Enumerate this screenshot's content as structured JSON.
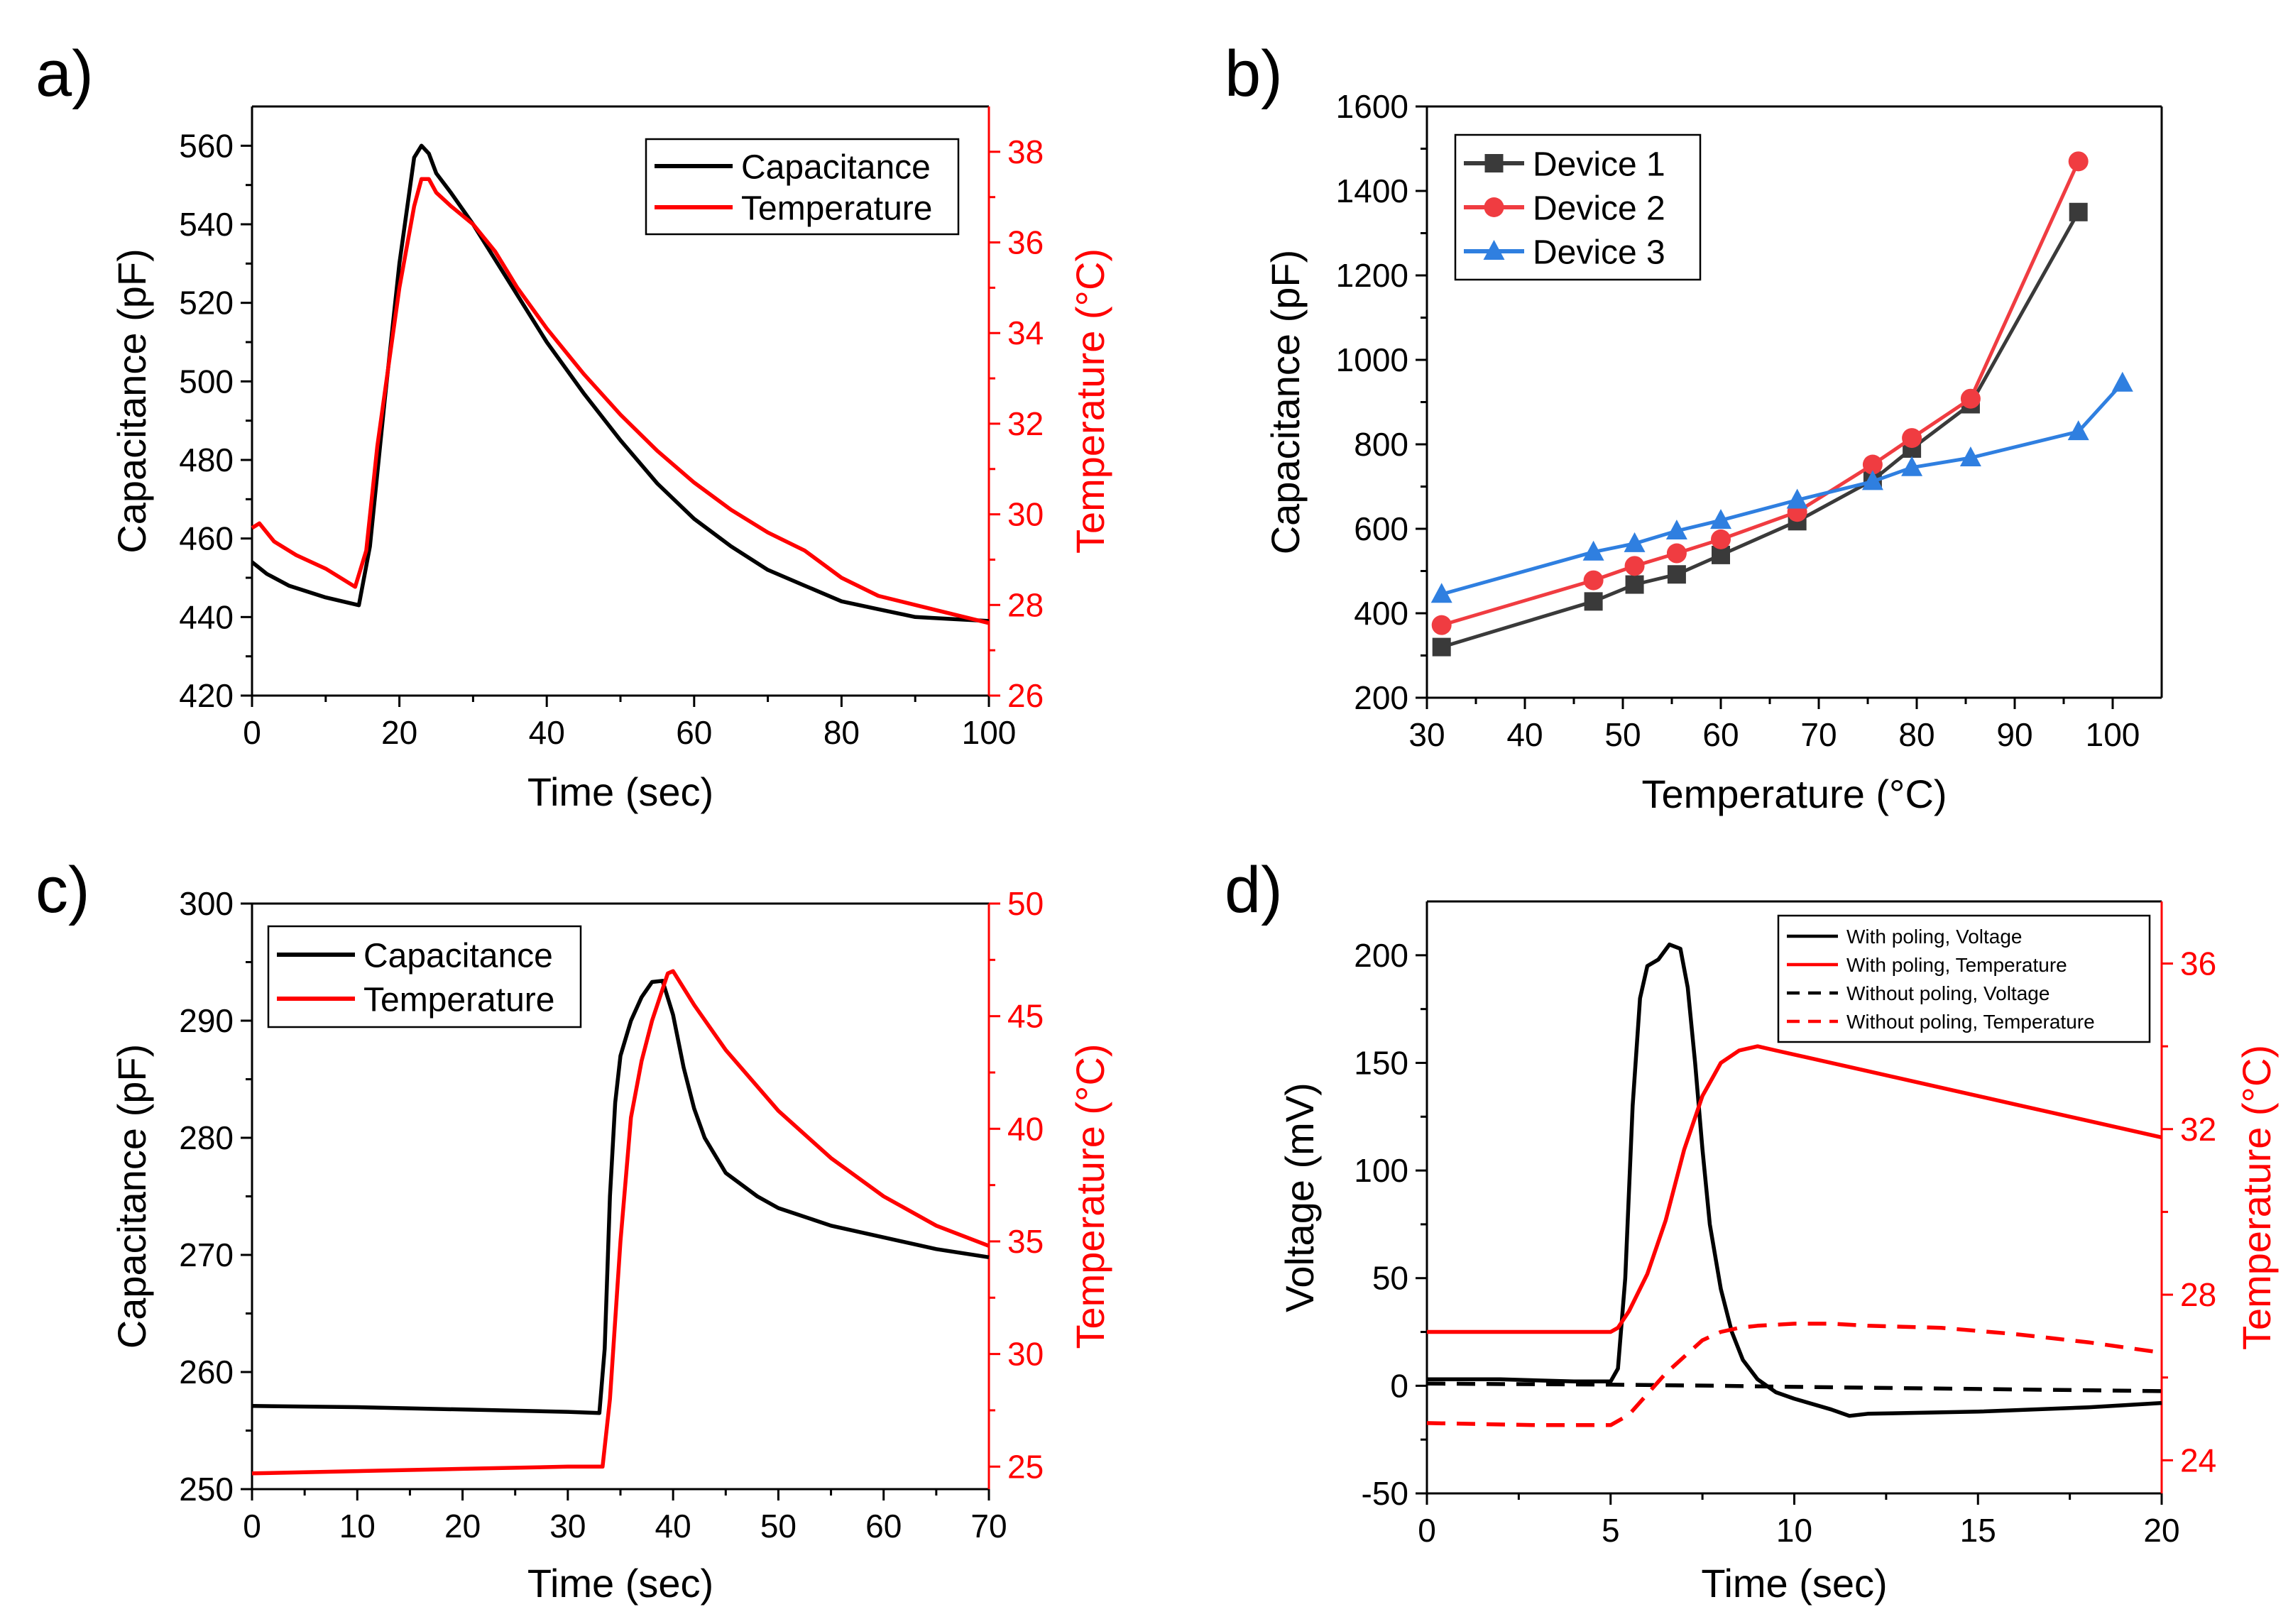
{
  "colors": {
    "black": "#000000",
    "red": "#ff0000",
    "gray": "#3a3a3a",
    "pink_red": "#f03c41",
    "blue": "#2f7fe0"
  },
  "chart_data": [
    {
      "panel": "a)",
      "type": "line",
      "xlabel": "Time (sec)",
      "ylabel": "Capacitance (pF)",
      "y2label": "Temperature (°C)",
      "xlim": [
        0,
        100
      ],
      "ylim": [
        420,
        570
      ],
      "y2lim": [
        26,
        39
      ],
      "xticks": [
        "0",
        "20",
        "40",
        "60",
        "80",
        "100"
      ],
      "yticks": [
        "420",
        "440",
        "460",
        "480",
        "500",
        "520",
        "540",
        "560"
      ],
      "y2ticks": [
        "26",
        "28",
        "30",
        "32",
        "34",
        "36",
        "38"
      ],
      "legend_position": "top-right",
      "series": [
        {
          "name": "Capacitance",
          "axis": "left",
          "color": "#000000",
          "dash": "solid",
          "x": [
            0,
            2,
            5,
            10,
            14.5,
            16,
            18,
            20,
            22,
            23,
            24,
            25,
            27,
            30,
            35,
            40,
            45,
            50,
            55,
            60,
            65,
            70,
            75,
            80,
            85,
            90,
            95,
            100
          ],
          "y": [
            454,
            451,
            448,
            445,
            443,
            458,
            495,
            530,
            557,
            560,
            558,
            553,
            548,
            540,
            525,
            510,
            497,
            485,
            474,
            465,
            458,
            452,
            448,
            444,
            442,
            440,
            439.5,
            439
          ]
        },
        {
          "name": "Temperature",
          "axis": "right",
          "color": "#ff0000",
          "dash": "solid",
          "x": [
            0,
            1,
            3,
            6,
            10,
            14,
            15.5,
            17,
            20,
            22,
            23,
            24,
            25,
            27,
            30,
            33,
            36,
            40,
            45,
            50,
            55,
            60,
            65,
            70,
            75,
            80,
            85,
            90,
            95,
            100
          ],
          "y": [
            29.7,
            29.8,
            29.4,
            29.1,
            28.8,
            28.4,
            29.2,
            31.5,
            35,
            36.8,
            37.4,
            37.4,
            37.1,
            36.8,
            36.4,
            35.8,
            35,
            34.1,
            33.1,
            32.2,
            31.4,
            30.7,
            30.1,
            29.6,
            29.2,
            28.6,
            28.2,
            28,
            27.8,
            27.6
          ]
        }
      ]
    },
    {
      "panel": "b)",
      "type": "line",
      "xlabel": "Temperature (°C)",
      "ylabel": "Capacitance (pF)",
      "xlim": [
        30,
        105
      ],
      "ylim": [
        200,
        1600
      ],
      "xticks": [
        "30",
        "40",
        "50",
        "60",
        "70",
        "80",
        "90",
        "100"
      ],
      "yticks": [
        "200",
        "400",
        "600",
        "800",
        "1000",
        "1200",
        "1400",
        "1600"
      ],
      "legend_position": "top-left",
      "series": [
        {
          "name": "Device 1",
          "color": "#3a3a3a",
          "marker": "square",
          "x": [
            31.5,
            47,
            51.2,
            55.5,
            60,
            67.8,
            75.5,
            79.5,
            85.5,
            96.5
          ],
          "y": [
            320,
            428,
            468,
            492,
            538,
            618,
            715,
            790,
            895,
            1350
          ]
        },
        {
          "name": "Device 2",
          "color": "#f03c41",
          "marker": "circle",
          "x": [
            31.5,
            47,
            51.2,
            55.5,
            60,
            67.8,
            75.5,
            79.5,
            85.5,
            96.5
          ],
          "y": [
            372,
            478,
            512,
            542,
            575,
            640,
            752,
            815,
            908,
            1470
          ]
        },
        {
          "name": "Device 3",
          "color": "#2f7fe0",
          "marker": "triangle",
          "x": [
            31.5,
            47,
            51.2,
            55.5,
            60,
            67.8,
            75.5,
            79.5,
            85.5,
            96.5,
            101
          ],
          "y": [
            445,
            545,
            565,
            595,
            620,
            668,
            712,
            745,
            768,
            830,
            945
          ]
        }
      ]
    },
    {
      "panel": "c)",
      "type": "line",
      "xlabel": "Time (sec)",
      "ylabel": "Capacitance (pF)",
      "y2label": "Temperature (°C)",
      "xlim": [
        0,
        70
      ],
      "ylim": [
        250,
        300
      ],
      "y2lim": [
        24,
        50
      ],
      "xticks": [
        "0",
        "10",
        "20",
        "30",
        "40",
        "50",
        "60",
        "70"
      ],
      "yticks": [
        "250",
        "260",
        "270",
        "280",
        "290",
        "300"
      ],
      "y2ticks": [
        "25",
        "30",
        "35",
        "40",
        "45",
        "50"
      ],
      "legend_position": "top-left",
      "series": [
        {
          "name": "Capacitance",
          "axis": "left",
          "color": "#000000",
          "dash": "solid",
          "x": [
            0,
            10,
            20,
            30,
            33,
            33.5,
            34,
            34.5,
            35,
            36,
            37,
            38,
            39,
            40,
            41,
            42,
            43,
            45,
            48,
            50,
            55,
            60,
            65,
            70
          ],
          "y": [
            257.1,
            257,
            256.8,
            256.6,
            256.5,
            262,
            275,
            283,
            287,
            290,
            292,
            293.3,
            293.4,
            290.5,
            286,
            282.5,
            280,
            277,
            275,
            274,
            272.5,
            271.5,
            270.5,
            269.8
          ]
        },
        {
          "name": "Temperature",
          "axis": "right",
          "color": "#ff0000",
          "dash": "solid",
          "x": [
            0,
            10,
            20,
            30,
            33.3,
            34,
            35,
            36,
            37,
            38,
            39,
            39.5,
            40,
            42,
            45,
            50,
            55,
            60,
            65,
            70
          ],
          "y": [
            24.7,
            24.8,
            24.9,
            25,
            25,
            28,
            35,
            40.5,
            43,
            44.8,
            46.2,
            46.9,
            47,
            45.5,
            43.5,
            40.8,
            38.7,
            37,
            35.7,
            34.8
          ]
        }
      ]
    },
    {
      "panel": "d)",
      "type": "line",
      "xlabel": "Time (sec)",
      "ylabel": "Voltage (mV)",
      "y2label": "Temperature (°C)",
      "xlim": [
        0,
        20
      ],
      "ylim": [
        -50,
        225
      ],
      "y2lim": [
        23.2,
        37.5
      ],
      "xticks": [
        "0",
        "5",
        "10",
        "15",
        "20"
      ],
      "yticks": [
        "-50",
        "0",
        "50",
        "100",
        "150",
        "200"
      ],
      "y2ticks": [
        "24",
        "28",
        "32",
        "36"
      ],
      "legend_position": "top-right",
      "series": [
        {
          "name": "With poling, Voltage",
          "axis": "left",
          "color": "#000000",
          "dash": "solid",
          "x": [
            0,
            2,
            4,
            5,
            5.2,
            5.4,
            5.6,
            5.8,
            6,
            6.3,
            6.6,
            6.9,
            7.1,
            7.3,
            7.5,
            7.7,
            8,
            8.3,
            8.6,
            9,
            9.5,
            10,
            11,
            11.5,
            12,
            15,
            18,
            20
          ],
          "y": [
            3,
            3,
            2,
            2,
            8,
            50,
            130,
            180,
            195,
            198,
            205,
            203,
            185,
            150,
            110,
            75,
            45,
            25,
            12,
            3,
            -3,
            -6,
            -11,
            -14,
            -13,
            -12,
            -10,
            -8
          ]
        },
        {
          "name": "With poling, Temperature",
          "axis": "right",
          "color": "#ff0000",
          "dash": "solid",
          "x": [
            0,
            2,
            4,
            5,
            5.2,
            5.5,
            6,
            6.5,
            7,
            7.5,
            8,
            8.5,
            9,
            9.5,
            10,
            12,
            14,
            16,
            18,
            20
          ],
          "y": [
            27.1,
            27.1,
            27.1,
            27.1,
            27.2,
            27.6,
            28.5,
            29.8,
            31.5,
            32.8,
            33.6,
            33.9,
            34,
            33.9,
            33.8,
            33.4,
            33,
            32.6,
            32.2,
            31.8
          ]
        },
        {
          "name": "Without poling, Voltage",
          "axis": "left",
          "color": "#000000",
          "dash": "dashed",
          "x": [
            0,
            5,
            8,
            10,
            15,
            20
          ],
          "y": [
            1,
            0.5,
            0,
            -0.5,
            -1.5,
            -2.5
          ]
        },
        {
          "name": "Without poling, Temperature",
          "axis": "right",
          "color": "#ff0000",
          "dash": "dashed",
          "x": [
            0,
            3,
            5,
            5.5,
            6,
            6.5,
            7,
            7.5,
            8,
            8.5,
            9,
            10,
            11,
            12,
            14,
            16,
            18,
            20
          ],
          "y": [
            24.9,
            24.85,
            24.85,
            25.1,
            25.6,
            26.1,
            26.5,
            26.9,
            27.1,
            27.2,
            27.25,
            27.3,
            27.3,
            27.25,
            27.2,
            27.05,
            26.85,
            26.6
          ]
        }
      ]
    }
  ]
}
